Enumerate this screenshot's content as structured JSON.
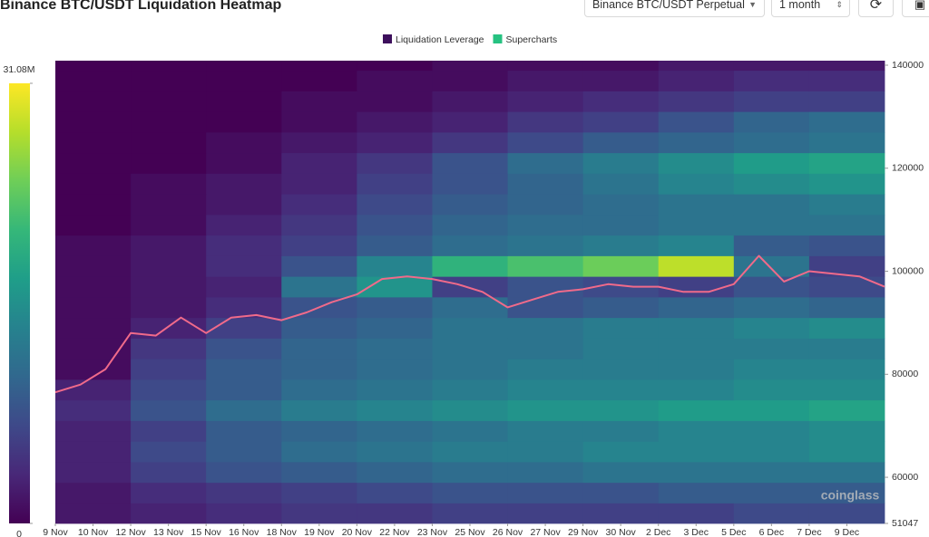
{
  "header": {
    "title": "Binance BTC/USDT Liquidation Heatmap",
    "exchange_select": "Binance BTC/USDT Perpetual",
    "period_select": "1 month"
  },
  "watermark": "coinglass",
  "chart_data": {
    "type": "heatmap",
    "series": [
      {
        "name": "Liquidation Leverage",
        "color": "#3d0f5c",
        "x_edges": [
          0,
          3,
          6,
          9,
          12,
          15,
          18,
          21,
          24,
          27,
          30,
          33
        ],
        "y_edges": [
          51047,
          55000,
          59000,
          63000,
          67000,
          71000,
          75000,
          79000,
          83000,
          87000,
          91000,
          95000,
          99000,
          103000,
          107000,
          111000,
          115000,
          119000,
          123000,
          127000,
          131000,
          135000,
          139000,
          140879
        ],
        "z": [
          [
            2,
            3,
            4,
            5,
            5,
            6,
            6,
            6,
            6,
            7,
            7
          ],
          [
            2,
            4,
            5,
            6,
            7,
            8,
            8,
            8,
            9,
            9,
            9
          ],
          [
            3,
            6,
            8,
            9,
            10,
            11,
            11,
            12,
            12,
            12,
            12
          ],
          [
            3,
            7,
            9,
            11,
            12,
            13,
            13,
            14,
            14,
            14,
            15
          ],
          [
            3,
            6,
            9,
            10,
            11,
            12,
            13,
            13,
            14,
            14,
            15
          ],
          [
            4,
            8,
            11,
            13,
            14,
            15,
            16,
            16,
            17,
            17,
            18
          ],
          [
            3,
            7,
            9,
            11,
            12,
            13,
            14,
            14,
            14,
            15,
            15
          ],
          [
            1,
            6,
            9,
            10,
            11,
            12,
            13,
            13,
            13,
            14,
            14
          ],
          [
            1,
            5,
            8,
            10,
            11,
            12,
            12,
            13,
            13,
            13,
            13
          ],
          [
            1,
            3,
            6,
            9,
            10,
            12,
            12,
            13,
            13,
            14,
            15
          ],
          [
            1,
            2,
            4,
            8,
            9,
            11,
            8,
            9,
            10,
            11,
            10
          ],
          [
            1,
            2,
            3,
            12,
            16,
            6,
            8,
            7,
            6,
            8,
            7
          ],
          [
            1,
            2,
            4,
            8,
            14,
            20,
            22,
            24,
            28,
            12,
            6
          ],
          [
            1,
            2,
            4,
            6,
            9,
            11,
            12,
            13,
            14,
            9,
            8
          ],
          [
            0,
            1,
            3,
            5,
            8,
            10,
            11,
            11,
            12,
            12,
            12
          ],
          [
            0,
            1,
            2,
            4,
            7,
            9,
            10,
            11,
            12,
            12,
            13
          ],
          [
            0,
            1,
            2,
            3,
            6,
            8,
            10,
            12,
            14,
            15,
            16
          ],
          [
            0,
            0,
            1,
            3,
            5,
            8,
            11,
            13,
            15,
            17,
            18
          ],
          [
            0,
            0,
            1,
            2,
            3,
            5,
            7,
            9,
            10,
            11,
            12
          ],
          [
            0,
            0,
            0,
            1,
            2,
            3,
            5,
            6,
            8,
            10,
            11
          ],
          [
            0,
            0,
            0,
            1,
            1,
            2,
            3,
            4,
            5,
            6,
            6
          ],
          [
            0,
            0,
            0,
            0,
            1,
            1,
            2,
            2,
            3,
            4,
            4
          ],
          [
            0,
            0,
            0,
            0,
            0,
            1,
            1,
            1,
            2,
            2,
            2
          ]
        ]
      },
      {
        "name": "Supercharts",
        "color": "#26c281",
        "line_color": "#f06a8a",
        "x": [
          0,
          1,
          2,
          3,
          4,
          5,
          6,
          7,
          8,
          9,
          10,
          11,
          12,
          13,
          14,
          15,
          16,
          17,
          18,
          19,
          20,
          21,
          22,
          23,
          24,
          25,
          26,
          27,
          28,
          29,
          30,
          31,
          32,
          33
        ],
        "values": [
          76500,
          78000,
          81000,
          88000,
          87500,
          91000,
          88000,
          91000,
          91500,
          90500,
          92000,
          94000,
          95500,
          98500,
          99000,
          98500,
          97500,
          96000,
          93000,
          94500,
          96000,
          96500,
          97500,
          97000,
          97000,
          96000,
          96000,
          97500,
          103000,
          98000,
          100000,
          99500,
          99000,
          97000
        ]
      }
    ],
    "colorscale": [
      "#440154",
      "#482878",
      "#3e4989",
      "#31688e",
      "#26828e",
      "#1f9e89",
      "#35b779",
      "#6ece58",
      "#b5de2b",
      "#fde725"
    ],
    "zlim": [
      0,
      31.08
    ],
    "zticks": [
      0,
      {
        "value": 31.08,
        "label": "31.08M"
      }
    ],
    "xlim": [
      0,
      33
    ],
    "xticks": [
      {
        "value": 0,
        "label": "9 Nov"
      },
      {
        "value": 1.5,
        "label": "10 Nov"
      },
      {
        "value": 3,
        "label": "12 Nov"
      },
      {
        "value": 4.5,
        "label": "13 Nov"
      },
      {
        "value": 6,
        "label": "15 Nov"
      },
      {
        "value": 7.5,
        "label": "16 Nov"
      },
      {
        "value": 9,
        "label": "18 Nov"
      },
      {
        "value": 10.5,
        "label": "19 Nov"
      },
      {
        "value": 12,
        "label": "20 Nov"
      },
      {
        "value": 13.5,
        "label": "22 Nov"
      },
      {
        "value": 15,
        "label": "23 Nov"
      },
      {
        "value": 16.5,
        "label": "25 Nov"
      },
      {
        "value": 18,
        "label": "26 Nov"
      },
      {
        "value": 19.5,
        "label": "27 Nov"
      },
      {
        "value": 21,
        "label": "29 Nov"
      },
      {
        "value": 22.5,
        "label": "30 Nov"
      },
      {
        "value": 24,
        "label": "2 Dec"
      },
      {
        "value": 25.5,
        "label": "3 Dec"
      },
      {
        "value": 27,
        "label": "5 Dec"
      },
      {
        "value": 28.5,
        "label": "6 Dec"
      },
      {
        "value": 30,
        "label": "7 Dec"
      },
      {
        "value": 31.5,
        "label": "9 Dec"
      }
    ],
    "ylim": [
      51047,
      140879
    ],
    "yticks": [
      51047,
      60000,
      80000,
      100000,
      120000,
      140000
    ],
    "y_axis_side": "right",
    "legend": "top"
  }
}
